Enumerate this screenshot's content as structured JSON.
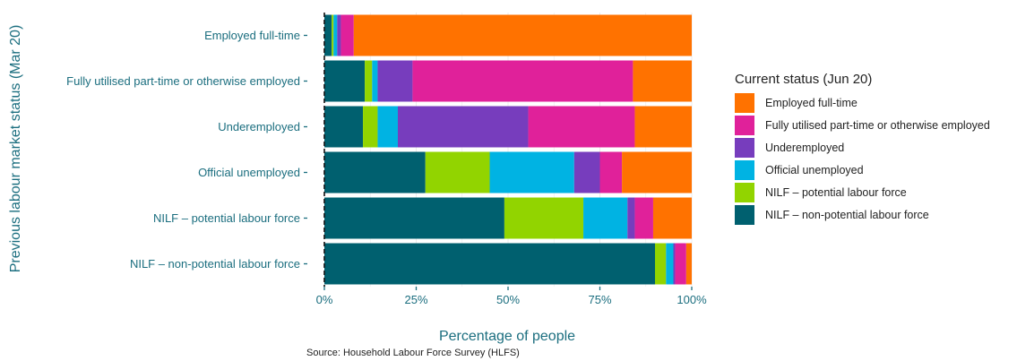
{
  "chart_data": {
    "type": "bar",
    "orientation": "horizontal",
    "stacked": true,
    "xlabel": "Percentage of people",
    "ylabel": "Previous labour market status (Mar 20)",
    "xlim": [
      0,
      100
    ],
    "x_ticks": [
      "0%",
      "25%",
      "50%",
      "75%",
      "100%"
    ],
    "grid": true,
    "legend_placement": "right",
    "legend_title": "Current status (Jun 20)",
    "categories": [
      "Employed full-time",
      "Fully utilised part-time or otherwise employed",
      "Underemployed",
      "Official unemployed",
      "NILF – potential labour force",
      "NILF – non-potential labour force"
    ],
    "series": [
      {
        "name": "NILF – non-potential labour force",
        "color": "#00606f",
        "values": [
          2,
          11,
          10.5,
          27.5,
          49,
          90
        ]
      },
      {
        "name": "NILF – potential labour force",
        "color": "#92d400",
        "values": [
          0.5,
          2,
          4,
          17.5,
          21.5,
          3
        ]
      },
      {
        "name": "Official unemployed",
        "color": "#00b3e3",
        "values": [
          1,
          1.5,
          5.5,
          23,
          12,
          2
        ]
      },
      {
        "name": "Underemployed",
        "color": "#773dbd",
        "values": [
          1,
          9.5,
          35.5,
          7,
          2,
          0.5
        ]
      },
      {
        "name": "Fully utilised part-time or otherwise employed",
        "color": "#e0219a",
        "values": [
          3.5,
          60,
          29,
          6,
          5,
          3
        ]
      },
      {
        "name": "Employed full-time",
        "color": "#ff7200",
        "values": [
          92,
          16,
          15.5,
          19,
          10.5,
          1.5
        ]
      }
    ]
  },
  "source": "Source: Household Labour Force Survey (HLFS)"
}
